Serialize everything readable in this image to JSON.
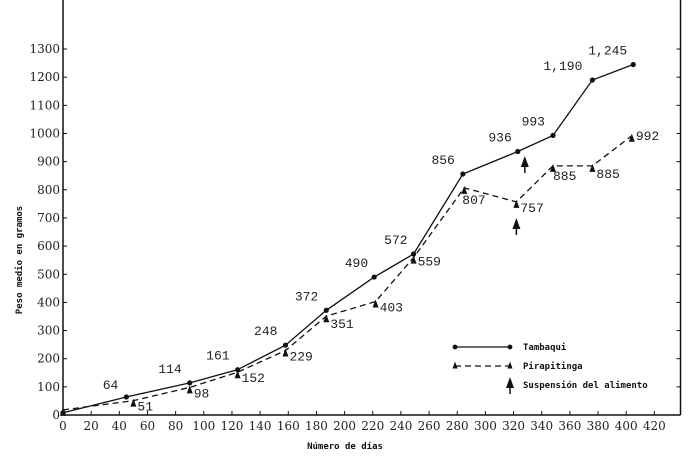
{
  "chart_data": {
    "type": "line",
    "title": "",
    "xlabel": "Número de días",
    "ylabel": "Peso medio en gramos",
    "xlim": [
      0,
      440
    ],
    "ylim": [
      0,
      1300
    ],
    "xticks": [
      0,
      20,
      40,
      60,
      80,
      100,
      120,
      140,
      160,
      180,
      200,
      220,
      240,
      260,
      280,
      300,
      320,
      340,
      360,
      380,
      400,
      420
    ],
    "yticks": [
      0,
      100,
      200,
      300,
      400,
      500,
      600,
      700,
      800,
      900,
      1000,
      1100,
      1200,
      1300
    ],
    "grid": false,
    "legend_position": "bottom-right",
    "series": [
      {
        "name": "Tambaqui",
        "style": "solid",
        "marker": "dot",
        "x": [
          0,
          45,
          90,
          124,
          158,
          187,
          221,
          249,
          284,
          323,
          348,
          376,
          405
        ],
        "y": [
          8,
          64,
          114,
          161,
          248,
          372,
          490,
          572,
          856,
          936,
          993,
          1190,
          1245
        ],
        "labels": [
          "",
          "64",
          "114",
          "161",
          "248",
          "372",
          "490",
          "572",
          "856",
          "936",
          "993",
          "1,190",
          "1,245"
        ]
      },
      {
        "name": "Pirapitinga",
        "style": "dashed",
        "marker": "triangle",
        "x": [
          0,
          50,
          90,
          124,
          158,
          187,
          222,
          249,
          285,
          322,
          348,
          376,
          404
        ],
        "y": [
          18,
          51,
          98,
          152,
          229,
          351,
          403,
          559,
          807,
          757,
          885,
          885,
          992
        ],
        "labels": [
          "",
          "51",
          "98",
          "152",
          "229",
          "351",
          "403",
          "559",
          "807",
          "757",
          "885",
          "885",
          "992"
        ]
      }
    ],
    "annotations": [
      {
        "name": "Suspensión del alimento",
        "marker": "arrow-up",
        "points": [
          {
            "x": 328,
            "y": 920
          },
          {
            "x": 322,
            "y": 700
          }
        ]
      }
    ]
  }
}
